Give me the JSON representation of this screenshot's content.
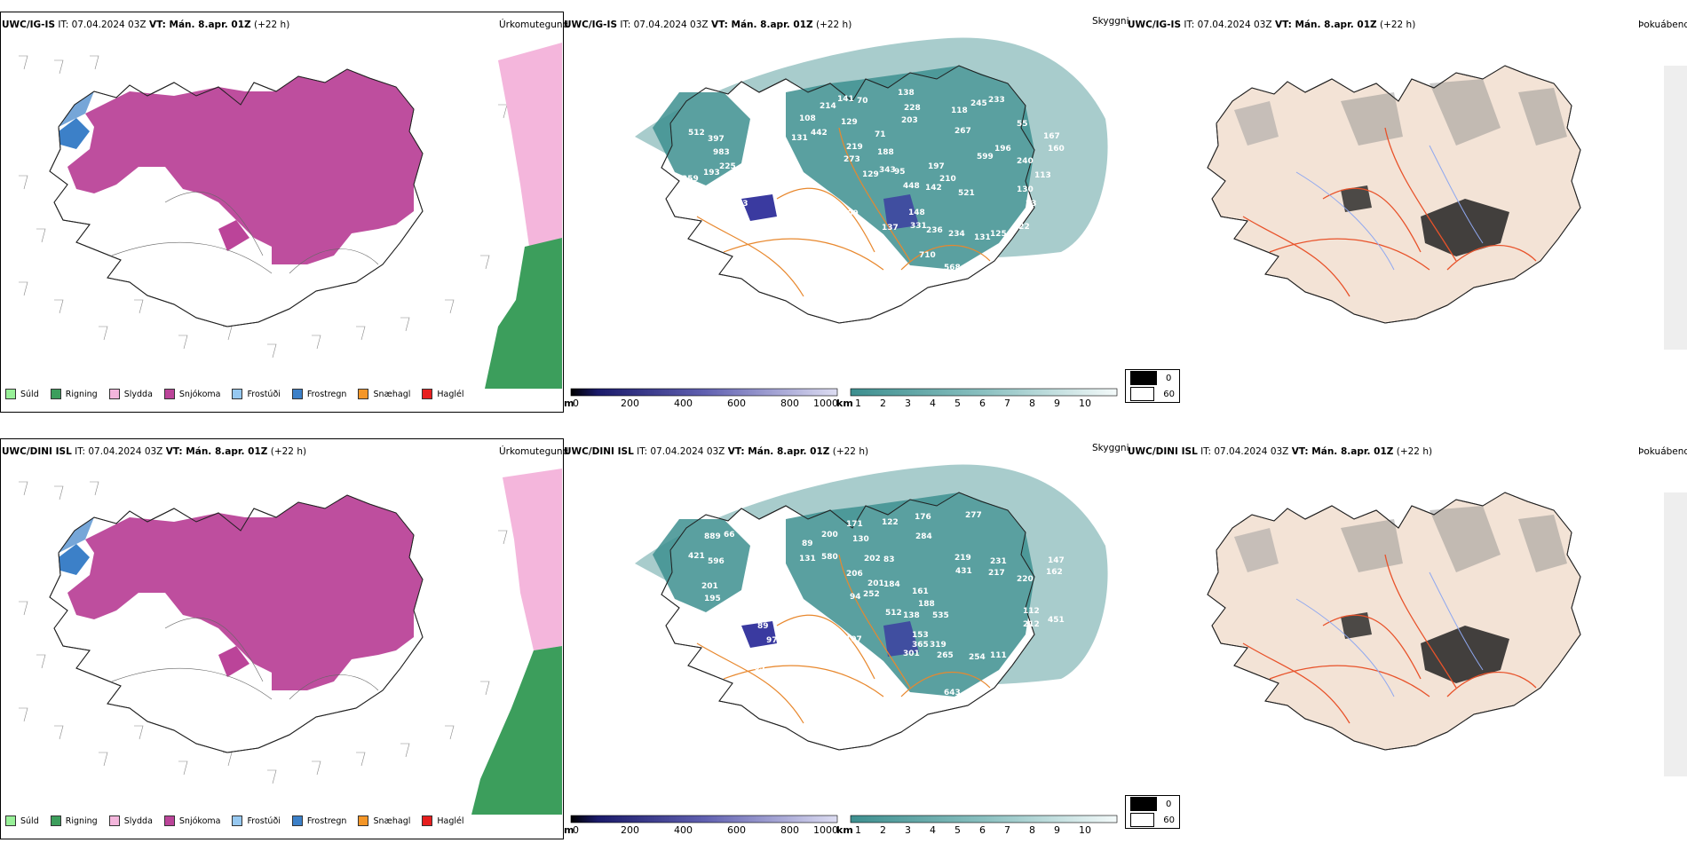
{
  "rows": [
    {
      "model": "UWC/IG-IS",
      "it_label": "IT: 07.04.2024 03Z",
      "vt_label": "VT: Mán. 8.apr. 01Z",
      "lead": "(+22 h)",
      "labels": [
        "176",
        "95",
        "75",
        "512",
        "397",
        "983",
        "225",
        "259",
        "193",
        "336",
        "318",
        "83",
        "108",
        "214",
        "141",
        "70",
        "138",
        "228",
        "203",
        "118",
        "245",
        "233",
        "131",
        "442",
        "129",
        "219",
        "71",
        "188",
        "343",
        "273",
        "129",
        "95",
        "197",
        "267",
        "55",
        "196",
        "167",
        "160",
        "599",
        "210",
        "240",
        "448",
        "142",
        "521",
        "113",
        "130",
        "23",
        "109",
        "148",
        "137",
        "331",
        "236",
        "234",
        "131",
        "125",
        "122",
        "710",
        "568"
      ]
    },
    {
      "model": "UWC/DINI ISL",
      "it_label": "IT: 07.04.2024 03Z",
      "vt_label": "VT: Mán. 8.apr. 01Z",
      "lead": "(+22 h)",
      "labels": [
        "101",
        "71",
        "97",
        "889",
        "66",
        "421",
        "596",
        "201",
        "195",
        "241",
        "96",
        "89",
        "200",
        "171",
        "122",
        "176",
        "277",
        "130",
        "131",
        "580",
        "284",
        "206",
        "202",
        "83",
        "219",
        "231",
        "431",
        "217",
        "220",
        "147",
        "162",
        "201",
        "184",
        "94",
        "252",
        "161",
        "188",
        "535",
        "512",
        "138",
        "112",
        "212",
        "451",
        "107",
        "89",
        "97",
        "153",
        "301",
        "365",
        "319",
        "265",
        "254",
        "111",
        "643",
        "65"
      ]
    }
  ],
  "precip_panel": {
    "title": "Úrkomutegund",
    "legend": [
      {
        "label": "Súld",
        "color": "#98f098"
      },
      {
        "label": "Rigning",
        "color": "#3c9e5c"
      },
      {
        "label": "Slydda",
        "color": "#f4b6dc"
      },
      {
        "label": "Snjókoma",
        "color": "#bb4499"
      },
      {
        "label": "Frostúði",
        "color": "#96c8f0"
      },
      {
        "label": "Frostregn",
        "color": "#3c80c8"
      },
      {
        "label": "Snæhagl",
        "color": "#f49628"
      },
      {
        "label": "Haglél",
        "color": "#e61e1e"
      }
    ]
  },
  "visibility_panel": {
    "title": "Skyggni",
    "unit_m": "m",
    "unit_km": "km",
    "m_ticks": [
      "0",
      "200",
      "400",
      "600",
      "800",
      "1000"
    ],
    "km_ticks": [
      "1",
      "2",
      "3",
      "4",
      "5",
      "6",
      "7",
      "8",
      "9",
      "10"
    ],
    "colors": {
      "teal": "#3d8f8f",
      "blue": "#3a3aa0",
      "orange": "#e8882e"
    }
  },
  "fog_panel": {
    "title": "Þokuábendi",
    "legend": [
      {
        "label": "0",
        "color": "#000000"
      },
      {
        "label": "60",
        "color": "#ffffff"
      }
    ],
    "colors": {
      "land": "#f3e3d6",
      "roads": "#e8522a",
      "rivers": "#8fa8f0"
    }
  }
}
